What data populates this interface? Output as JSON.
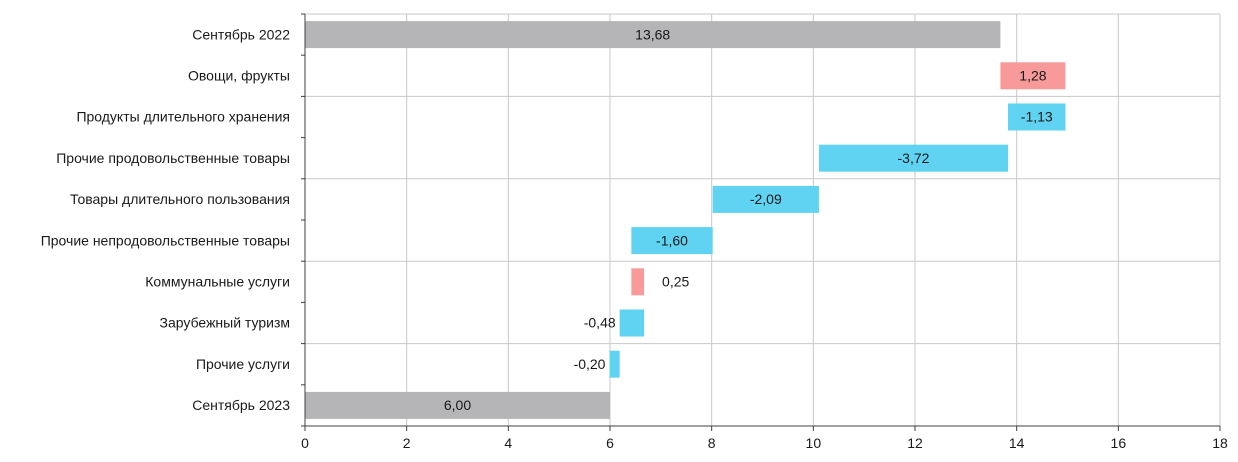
{
  "chart_data": {
    "type": "bar",
    "orientation": "horizontal",
    "style": "waterfall",
    "title": "",
    "xlabel": "",
    "ylabel": "",
    "xlim": [
      0,
      18
    ],
    "x_ticks": [
      0,
      2,
      4,
      6,
      8,
      10,
      12,
      14,
      16,
      18
    ],
    "grid": true,
    "legend": "none",
    "categories": [
      "Сентябрь 2022",
      "Овощи, фрукты",
      "Продукты длительного хранения",
      "Прочие продовольственные товары",
      "Товары длительного пользования",
      "Прочие непродовольственные товары",
      "Коммунальные услуги",
      "Зарубежный туризм",
      "Прочие услуги",
      "Сентябрь 2023"
    ],
    "values": [
      13.68,
      1.28,
      -1.13,
      -3.72,
      -2.09,
      -1.6,
      0.25,
      -0.48,
      -0.2,
      6.0
    ],
    "value_labels": [
      "13,68",
      "1,28",
      "-1,13",
      "-3,72",
      "-2,09",
      "-1,60",
      "0,25",
      "-0,48",
      "-0,20",
      "6,00"
    ],
    "bar_kinds": [
      "total",
      "delta",
      "delta",
      "delta",
      "delta",
      "delta",
      "delta",
      "delta",
      "delta",
      "total"
    ],
    "colors": {
      "total": "#b5b5b7",
      "increase": "#f99a9a",
      "decrease": "#5fd3f1",
      "grid": "#c8c8c8",
      "axis": "#404040"
    }
  }
}
